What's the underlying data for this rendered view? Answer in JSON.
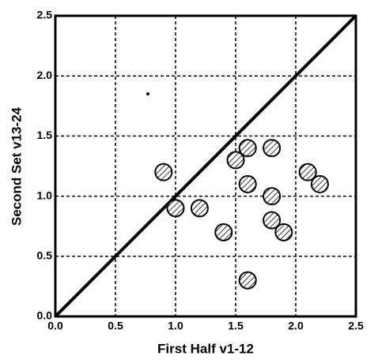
{
  "chart_data": {
    "type": "scatter",
    "x_label": "First Half v1-12",
    "y_label": "Second Set v13-24",
    "xlim": [
      0,
      2.5
    ],
    "ylim": [
      0,
      2.5
    ],
    "xticks": [
      {
        "value": 0,
        "label": "0.0"
      },
      0.5,
      {
        "value": 1,
        "label": "1.0"
      },
      1.5,
      {
        "value": 2,
        "label": "2.0"
      },
      2.5
    ],
    "yticks": [
      {
        "value": 0,
        "label": "0.0"
      },
      0.5,
      {
        "value": 1,
        "label": "1.0"
      },
      1.5,
      {
        "value": 2,
        "label": "2.0"
      },
      2.5
    ],
    "grid": true,
    "series": [
      {
        "marker": "hatched-circle",
        "color": "#000000",
        "x": [
          0.9,
          1.0,
          1.2,
          1.4,
          1.5,
          1.6,
          1.6,
          1.6,
          1.8,
          1.8,
          1.8,
          1.9,
          2.1,
          2.2
        ],
        "y": [
          1.2,
          0.9,
          0.9,
          0.7,
          1.3,
          1.4,
          1.1,
          0.3,
          1.4,
          1.0,
          0.8,
          0.7,
          1.2,
          1.1
        ]
      },
      {
        "marker": "dot",
        "color": "#000000",
        "x": [
          0.77
        ],
        "y": [
          1.85
        ]
      }
    ],
    "reference_line": {
      "x": [
        0,
        2.5
      ],
      "y": [
        0,
        2.5
      ],
      "color": "#000000"
    }
  }
}
